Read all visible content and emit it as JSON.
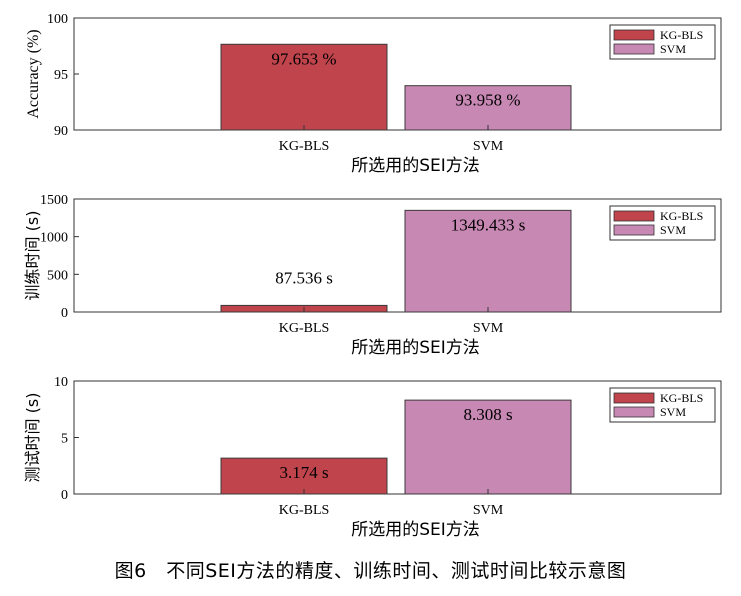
{
  "chart_data": [
    {
      "type": "bar",
      "categories": [
        "KG-BLS",
        "SVM"
      ],
      "values": [
        97.653,
        93.958
      ],
      "data_labels": [
        "97.653 %",
        "93.958 %"
      ],
      "xlabel": "所选用的SEI方法",
      "ylabel": "Accuracy (%)",
      "ylim": [
        90,
        100
      ],
      "yticks": [
        "90",
        "95",
        "100"
      ],
      "legend": [
        "KG-BLS",
        "SVM"
      ],
      "legend_position": "top-right",
      "grid": false
    },
    {
      "type": "bar",
      "categories": [
        "KG-BLS",
        "SVM"
      ],
      "values": [
        87.536,
        1349.433
      ],
      "data_labels": [
        "87.536 s",
        "1349.433 s"
      ],
      "xlabel": "所选用的SEI方法",
      "ylabel": "训练时间 (s)",
      "ylim": [
        0,
        1500
      ],
      "yticks": [
        "0",
        "500",
        "1000",
        "1500"
      ],
      "legend": [
        "KG-BLS",
        "SVM"
      ],
      "legend_position": "top-right",
      "grid": false
    },
    {
      "type": "bar",
      "categories": [
        "KG-BLS",
        "SVM"
      ],
      "values": [
        3.174,
        8.308
      ],
      "data_labels": [
        "3.174 s",
        "8.308 s"
      ],
      "xlabel": "所选用的SEI方法",
      "ylabel": "测试时间 (s)",
      "ylim": [
        0,
        10
      ],
      "yticks": [
        "0",
        "5",
        "10"
      ],
      "legend": [
        "KG-BLS",
        "SVM"
      ],
      "legend_position": "top-right",
      "grid": false
    }
  ],
  "colors": {
    "kg_bls": "#c0444c",
    "svm": "#c888b4"
  },
  "caption": "图6　不同SEI方法的精度、训练时间、测试时间比较示意图"
}
